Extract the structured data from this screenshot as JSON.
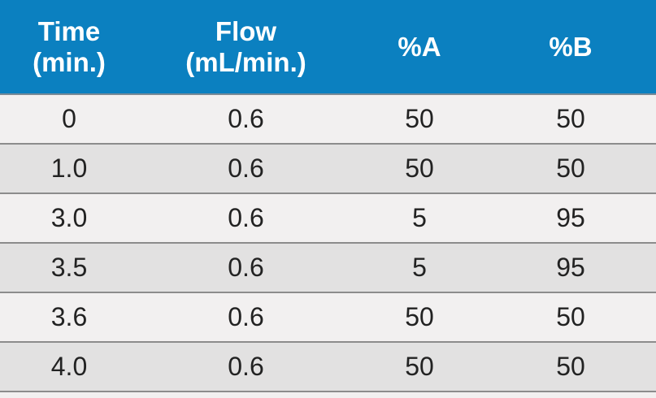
{
  "table": {
    "header": [
      [
        "Time",
        "(min.)"
      ],
      [
        "Flow",
        "(mL/min.)"
      ],
      [
        "%A"
      ],
      [
        "%B"
      ]
    ],
    "rows": [
      [
        "0",
        "0.6",
        "50",
        "50"
      ],
      [
        "1.0",
        "0.6",
        "50",
        "50"
      ],
      [
        "3.0",
        "0.6",
        "5",
        "95"
      ],
      [
        "3.5",
        "0.6",
        "5",
        "95"
      ],
      [
        "3.6",
        "0.6",
        "50",
        "50"
      ],
      [
        "4.0",
        "0.6",
        "50",
        "50"
      ]
    ]
  }
}
